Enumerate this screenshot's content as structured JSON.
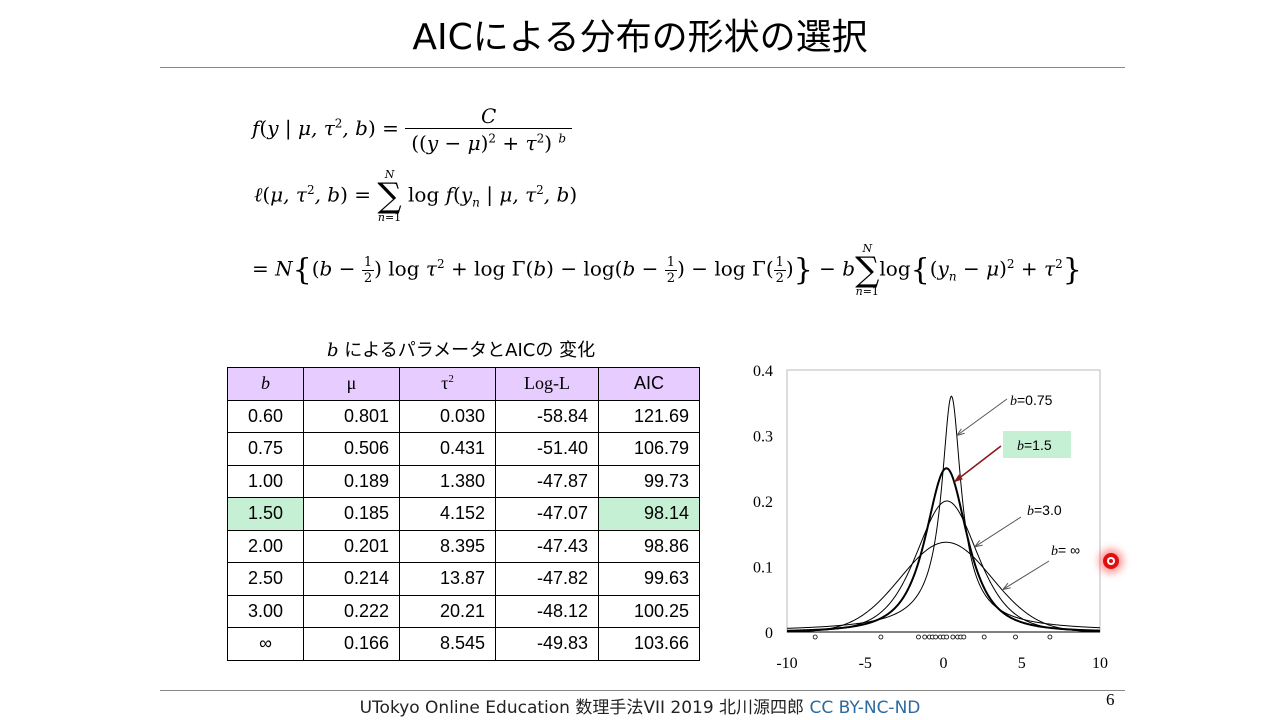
{
  "slide": {
    "title": "AICによる分布の形状の選択",
    "page_number": "6",
    "footer_text": "UTokyo Online Education 数理手法VII 2019 北川源四郎",
    "footer_license": "CC BY-NC-ND"
  },
  "equations": {
    "eq1_lhs": "f(y | μ, τ², b) =",
    "eq1_numerator": "C",
    "eq1_denominator": "((y − μ)² + τ²)^b",
    "eq2": "ℓ(μ, τ², b) = Σ_{n=1}^{N} log f(y_n | μ, τ², b)",
    "eq3": "= N{(b − 1/2) log τ² + log Γ(b) − log(b − 1/2) − log Γ(1/2)} − b Σ_{n=1}^{N} log{(y_n − μ)² + τ²}"
  },
  "table": {
    "caption_var": "b",
    "caption_text": " によるパラメータとAICの 変化",
    "headers": [
      "b",
      "μ",
      "τ²",
      "Log-L",
      "AIC"
    ],
    "rows": [
      [
        "0.60",
        "0.801",
        "0.030",
        "-58.84",
        "121.69"
      ],
      [
        "0.75",
        "0.506",
        "0.431",
        "-51.40",
        "106.79"
      ],
      [
        "1.00",
        "0.189",
        "1.380",
        "-47.87",
        "99.73"
      ],
      [
        "1.50",
        "0.185",
        "4.152",
        "-47.07",
        "98.14"
      ],
      [
        "2.00",
        "0.201",
        "8.395",
        "-47.43",
        "98.86"
      ],
      [
        "2.50",
        "0.214",
        "13.87",
        "-47.82",
        "99.63"
      ],
      [
        "3.00",
        "0.222",
        "20.21",
        "-48.12",
        "100.25"
      ],
      [
        "∞",
        "0.166",
        "8.545",
        "-49.83",
        "103.66"
      ]
    ],
    "highlight_row": 3,
    "highlight_color": "#c6f0d4",
    "header_color": "#e6ccff"
  },
  "chart_data": {
    "type": "line",
    "xlim": [
      -10,
      10
    ],
    "ylim": [
      0,
      0.4
    ],
    "x_ticks": [
      "-10",
      "-5",
      "0",
      "5",
      "10"
    ],
    "y_ticks": [
      "0",
      "0.1",
      "0.2",
      "0.3",
      "0.4"
    ],
    "grid": false,
    "series": [
      {
        "name": "b=0.75",
        "mu": 0.506,
        "tau2": 0.431,
        "b": 0.75,
        "peak": 0.36
      },
      {
        "name": "b=1.5",
        "mu": 0.185,
        "tau2": 4.152,
        "b": 1.5,
        "peak": 0.25,
        "highlighted": true
      },
      {
        "name": "b=3.0",
        "mu": 0.222,
        "tau2": 20.21,
        "b": 3.0,
        "peak": 0.2
      },
      {
        "name": "b= ∞",
        "mu": 0.166,
        "tau2": 8.545,
        "b": "inf",
        "peak": 0.137
      }
    ],
    "labels": [
      {
        "var": "b",
        "text": "=0.75"
      },
      {
        "var": "b",
        "text": "=1.5",
        "highlighted": true
      },
      {
        "var": "b",
        "text": "=3.0"
      },
      {
        "var": "b",
        "text": "= ∞"
      }
    ],
    "observations": [
      -8.2,
      -4.0,
      -1.6,
      -1.2,
      -0.9,
      -0.7,
      -0.5,
      -0.2,
      0.0,
      0.2,
      0.6,
      0.9,
      1.1,
      1.3,
      2.6,
      4.6,
      6.8
    ],
    "label_highlight_color": "#c6f0d4",
    "arrow_highlight_color": "#8b1a1a"
  }
}
